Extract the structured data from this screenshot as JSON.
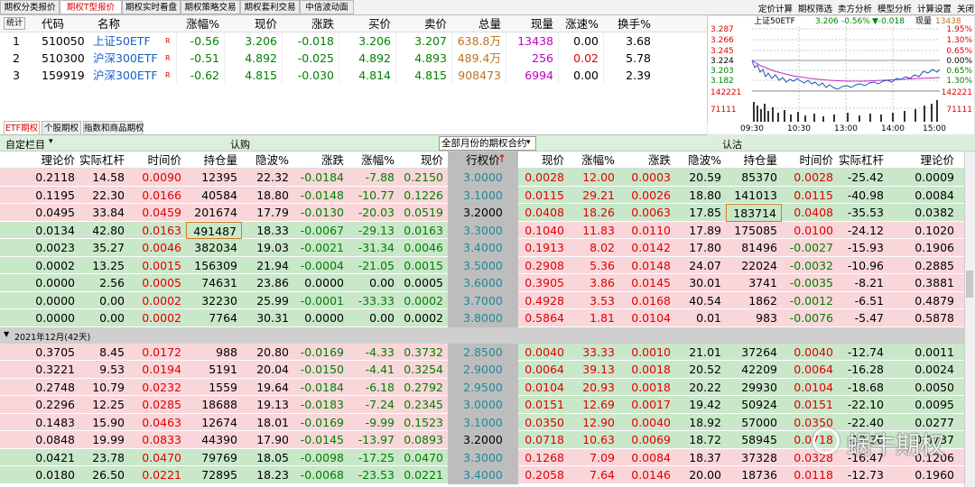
{
  "top_tabs": [
    "期权分类报价",
    "期权T型报价",
    "期权实时看盘",
    "期权策略交易",
    "期权套利交易",
    "中信波动面"
  ],
  "right_menu": [
    "定价计算",
    "期权筛选",
    "卖方分析",
    "模型分析",
    "计算设置",
    "关闭"
  ],
  "quote_table": {
    "header": [
      "统计",
      "代码",
      "名称",
      "涨幅%",
      "现价",
      "涨跌",
      "买价",
      "卖价",
      "总量",
      "现量",
      "涨速%",
      "换手%"
    ],
    "rows": [
      [
        "1",
        "510050",
        "上证50ETF",
        "R",
        "-0.56",
        "3.206",
        "-0.018",
        "3.206",
        "3.207",
        "638.8万",
        "13438",
        "0.00",
        "3.68"
      ],
      [
        "2",
        "510300",
        "沪深300ETF",
        "R",
        "-0.51",
        "4.892",
        "-0.025",
        "4.892",
        "4.893",
        "489.4万",
        "256",
        "0.02",
        "5.78"
      ],
      [
        "3",
        "159919",
        "沪深300ETF",
        "R",
        "-0.62",
        "4.815",
        "-0.030",
        "4.814",
        "4.815",
        "908473",
        "6994",
        "0.00",
        "2.39"
      ]
    ]
  },
  "mini_chart": {
    "title": "上证50ETF",
    "price": "3.206",
    "change_pct": "-0.56%",
    "change": "▼-0.018",
    "volume_label": "现量",
    "volume": "13438",
    "y_left": [
      "3.287",
      "3.266",
      "3.245",
      "3.224",
      "3.203",
      "3.182",
      "142221",
      "71111"
    ],
    "y_right": [
      "1.95%",
      "1.30%",
      "0.65%",
      "0.00%",
      "0.65%",
      "1.30%",
      "142221",
      "71111"
    ],
    "x": [
      "09:30",
      "10:30",
      "13:00",
      "14:00",
      "15:00"
    ]
  },
  "sub_tabs": [
    "ETF期权",
    "个股期权",
    "指数和商品期权"
  ],
  "toolbar": {
    "custom": "自定栏目",
    "call": "认购",
    "month_select": "全部月份的期权合约",
    "put": "认沽"
  },
  "option_table": {
    "call_header": [
      "理论价",
      "实际杠杆",
      "时间价",
      "持仓量",
      "隐波%",
      "涨跌",
      "涨幅%",
      "现价"
    ],
    "strike_header": "行权价",
    "put_header": [
      "现价",
      "涨幅%",
      "涨跌",
      "隐波%",
      "持仓量",
      "时间价",
      "实际杠杆",
      "理论价"
    ],
    "groups": [
      {
        "rows": [
          [
            "0.2118",
            "14.58",
            "0.0090",
            "12395",
            "22.32",
            "-0.0184",
            "-7.88",
            "0.2150",
            "3.0000",
            "0.0028",
            "12.00",
            "0.0003",
            "20.59",
            "85370",
            "0.0028",
            "-25.42",
            "0.0009"
          ],
          [
            "0.1195",
            "22.30",
            "0.0166",
            "40584",
            "18.80",
            "-0.0148",
            "-10.77",
            "0.1226",
            "3.1000",
            "0.0115",
            "29.21",
            "0.0026",
            "18.80",
            "141013",
            "0.0115",
            "-40.98",
            "0.0084"
          ],
          [
            "0.0495",
            "33.84",
            "0.0459",
            "201674",
            "17.79",
            "-0.0130",
            "-20.03",
            "0.0519",
            "3.2000",
            "0.0408",
            "18.26",
            "0.0063",
            "17.85",
            "183714",
            "0.0408",
            "-35.53",
            "0.0382"
          ],
          [
            "0.0134",
            "42.80",
            "0.0163",
            "491487",
            "18.33",
            "-0.0067",
            "-29.13",
            "0.0163",
            "3.3000",
            "0.1040",
            "11.83",
            "0.0110",
            "17.89",
            "175085",
            "0.0100",
            "-24.12",
            "0.1020"
          ],
          [
            "0.0023",
            "35.27",
            "0.0046",
            "382034",
            "19.03",
            "-0.0021",
            "-31.34",
            "0.0046",
            "3.4000",
            "0.1913",
            "8.02",
            "0.0142",
            "17.80",
            "81496",
            "-0.0027",
            "-15.93",
            "0.1906"
          ],
          [
            "0.0002",
            "13.25",
            "0.0015",
            "156309",
            "21.94",
            "-0.0004",
            "-21.05",
            "0.0015",
            "3.5000",
            "0.2908",
            "5.36",
            "0.0148",
            "24.07",
            "22024",
            "-0.0032",
            "-10.96",
            "0.2885"
          ],
          [
            "0.0000",
            "2.56",
            "0.0005",
            "74631",
            "23.86",
            "0.0000",
            "0.00",
            "0.0005",
            "3.6000",
            "0.3905",
            "3.86",
            "0.0145",
            "30.01",
            "3741",
            "-0.0035",
            "-8.21",
            "0.3881"
          ],
          [
            "0.0000",
            "0.00",
            "0.0002",
            "32230",
            "25.99",
            "-0.0001",
            "-33.33",
            "0.0002",
            "3.7000",
            "0.4928",
            "3.53",
            "0.0168",
            "40.54",
            "1862",
            "-0.0012",
            "-6.51",
            "0.4879"
          ],
          [
            "0.0000",
            "0.00",
            "0.0002",
            "7764",
            "30.31",
            "0.0000",
            "0.00",
            "0.0002",
            "3.8000",
            "0.5864",
            "1.81",
            "0.0104",
            "0.01",
            "983",
            "-0.0076",
            "-5.47",
            "0.5878"
          ]
        ]
      },
      {
        "label": "2021年12月(42天)",
        "rows": [
          [
            "0.3705",
            "8.45",
            "0.0172",
            "988",
            "20.80",
            "-0.0169",
            "-4.33",
            "0.3732",
            "2.8500",
            "0.0040",
            "33.33",
            "0.0010",
            "21.01",
            "37264",
            "0.0040",
            "-12.74",
            "0.0011"
          ],
          [
            "0.3221",
            "9.53",
            "0.0194",
            "5191",
            "20.04",
            "-0.0150",
            "-4.41",
            "0.3254",
            "2.9000",
            "0.0064",
            "39.13",
            "0.0018",
            "20.52",
            "42209",
            "0.0064",
            "-16.28",
            "0.0024"
          ],
          [
            "0.2748",
            "10.79",
            "0.0232",
            "1559",
            "19.64",
            "-0.0184",
            "-6.18",
            "0.2792",
            "2.9500",
            "0.0104",
            "20.93",
            "0.0018",
            "20.22",
            "29930",
            "0.0104",
            "-18.68",
            "0.0050"
          ],
          [
            "0.2296",
            "12.25",
            "0.0285",
            "18688",
            "19.13",
            "-0.0183",
            "-7.24",
            "0.2345",
            "3.0000",
            "0.0151",
            "12.69",
            "0.0017",
            "19.42",
            "50924",
            "0.0151",
            "-22.10",
            "0.0095"
          ],
          [
            "0.1483",
            "15.90",
            "0.0463",
            "12674",
            "18.01",
            "-0.0169",
            "-9.99",
            "0.1523",
            "3.1000",
            "0.0350",
            "12.90",
            "0.0040",
            "18.92",
            "57000",
            "0.0350",
            "-22.40",
            "0.0277"
          ],
          [
            "0.0848",
            "19.99",
            "0.0833",
            "44390",
            "17.90",
            "-0.0145",
            "-13.97",
            "0.0893",
            "3.2000",
            "0.0718",
            "10.63",
            "0.0069",
            "18.72",
            "58945",
            "0.0718",
            "-19.36",
            "0.0737"
          ],
          [
            "0.0421",
            "23.78",
            "0.0470",
            "79769",
            "18.05",
            "-0.0098",
            "-17.25",
            "0.0470",
            "3.3000",
            "0.1268",
            "7.09",
            "0.0084",
            "18.37",
            "37328",
            "0.0328",
            "-16.47",
            "0.1206"
          ],
          [
            "0.0180",
            "26.50",
            "0.0221",
            "72895",
            "18.23",
            "-0.0068",
            "-23.53",
            "0.0221",
            "3.4000",
            "0.2058",
            "7.64",
            "0.0146",
            "20.00",
            "18736",
            "0.0118",
            "-12.73",
            "0.1960"
          ]
        ]
      }
    ]
  },
  "watermark": "蜗牛期权"
}
